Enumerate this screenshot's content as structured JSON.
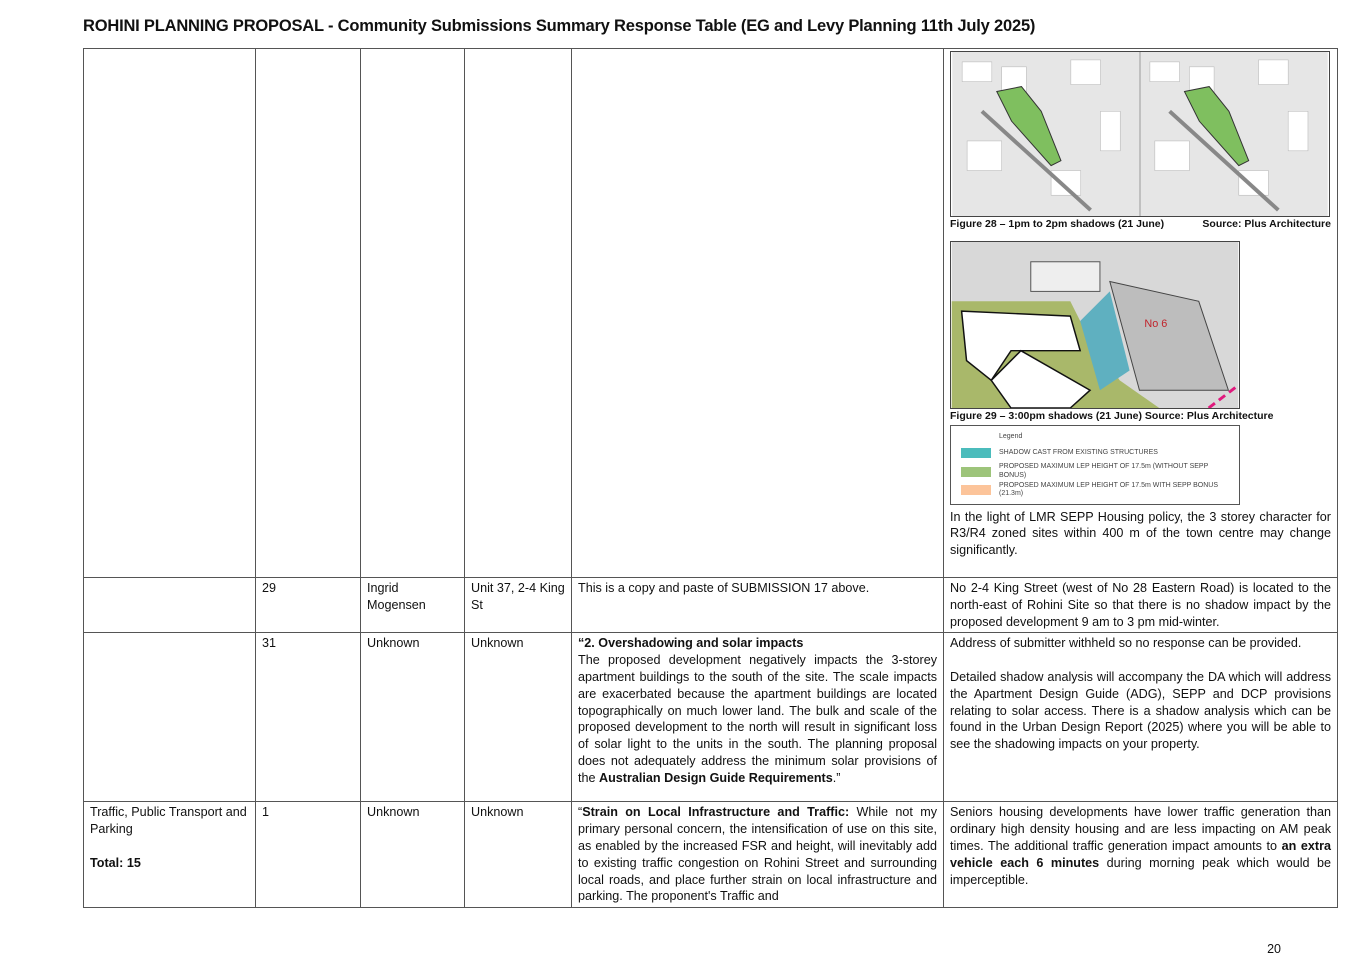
{
  "title": "ROHINI PLANNING PROPOSAL  - Community Submissions  Summary Response Table (EG and Levy Planning 11th July 2025)",
  "figures": {
    "fig28_caption": "Figure 28 – 1pm to 2pm shadows (21 June)",
    "fig28_source": "Source: Plus Architecture",
    "fig29_caption": "Figure 29 – 3:00pm shadows (21 June)   Source: Plus Architecture",
    "fig29_label": "No 6",
    "legend_title": "Legend",
    "legend": [
      {
        "label": "SHADOW CAST FROM EXISTING STRUCTURES",
        "color": "#4bbcbc"
      },
      {
        "label": "PROPOSED MAXIMUM LEP HEIGHT OF 17.5m (WITHOUT SEPP BONUS)",
        "color": "#9dc47a"
      },
      {
        "label": "PROPOSED MAXIMUM LEP HEIGHT OF 17.5m WITH SEPP BONUS (21.3m)",
        "color": "#fcc49a"
      }
    ],
    "after_text": "In the light of LMR SEPP Housing policy, the 3 storey character for R3/R4 zoned sites within 400 m of the town centre may change significantly."
  },
  "rows": [
    {
      "no": "29",
      "name": "Ingrid Mogensen",
      "address": "Unit 37, 2-4 King St",
      "submission": "This is a copy and paste of SUBMISSION 17 above.",
      "response": "No 2-4 King Street (west of No 28 Eastern Road) is located to the north-east of Rohini Site so that there is no shadow impact by the proposed development 9 am to 3 pm mid-winter."
    },
    {
      "no": "31",
      "name": "Unknown",
      "address": "Unknown",
      "sub_heading": "“2. Overshadowing and solar impacts",
      "sub_body": "The proposed development negatively impacts the 3-storey apartment buildings to the south of the site. The scale impacts are exacerbated because the apartment buildings are located topographically on much lower land. The bulk and scale of the proposed development to the north will result in significant loss of solar light to the units in the south. The planning proposal does not adequately address the minimum solar provisions of the ",
      "sub_bold": "Australian Design Guide Requirements",
      "sub_end": ".”",
      "response_1": "Address of submitter withheld so no response can be provided.",
      "response_2": "Detailed shadow analysis will accompany the DA which will address the Apartment Design Guide (ADG), SEPP and DCP provisions relating to solar access. There is a shadow analysis which can be found in the Urban Design Report (2025) where you will be able to see the shadowing impacts on your property."
    },
    {
      "category": "Traffic, Public Transport and Parking",
      "total": "Total: 15",
      "no": "1",
      "name": "Unknown",
      "address": "Unknown",
      "sub_open": "“",
      "sub_bold": "Strain on Local Infrastructure and Traffic:",
      "sub_body": " While not my primary personal concern, the intensification of use on this site, as enabled by the increased FSR and height, will inevitably add to existing traffic congestion on Rohini Street and surrounding local roads, and place further strain on local infrastructure and parking. The proponent's Traffic and",
      "resp_a": "Seniors housing developments have lower traffic generation than ordinary high density housing and are less impacting on AM peak times.  The additional traffic generation impact amounts to ",
      "resp_bold": "an extra vehicle each 6 minutes",
      "resp_b": " during morning peak which would be imperceptible."
    }
  ],
  "page_number": "20"
}
